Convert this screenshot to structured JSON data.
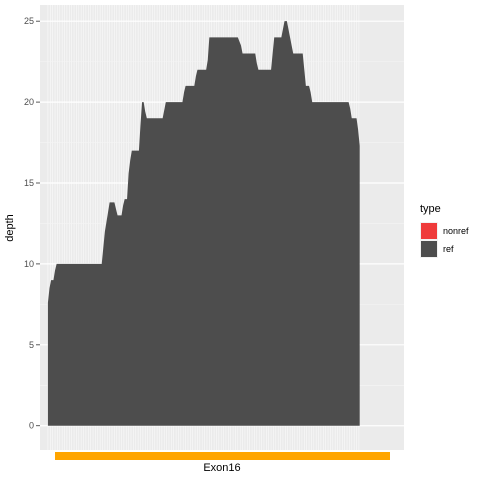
{
  "chart_data": {
    "type": "area",
    "ylabel": "depth",
    "ylim": [
      -1.5,
      26
    ],
    "yticks": [
      0,
      5,
      10,
      15,
      20,
      25
    ],
    "xlim": [
      -10,
      450
    ],
    "grid": true,
    "series": [
      {
        "name": "ref",
        "color": "#4d4d4d",
        "points": [
          [
            0,
            7.6
          ],
          [
            2,
            8.5
          ],
          [
            4,
            9
          ],
          [
            7,
            9
          ],
          [
            9,
            9.6
          ],
          [
            11,
            10
          ],
          [
            20,
            10
          ],
          [
            30,
            10
          ],
          [
            40,
            10
          ],
          [
            50,
            10
          ],
          [
            60,
            10
          ],
          [
            68,
            10
          ],
          [
            70,
            11
          ],
          [
            72,
            12
          ],
          [
            74,
            12.6
          ],
          [
            76,
            13.2
          ],
          [
            78,
            13.8
          ],
          [
            84,
            13.8
          ],
          [
            86,
            13.4
          ],
          [
            88,
            13
          ],
          [
            93,
            13
          ],
          [
            95,
            13.6
          ],
          [
            97,
            14
          ],
          [
            100,
            14
          ],
          [
            102,
            15.6
          ],
          [
            104,
            16.4
          ],
          [
            106,
            17
          ],
          [
            115,
            17
          ],
          [
            117,
            18.6
          ],
          [
            119,
            20
          ],
          [
            121,
            20
          ],
          [
            123,
            19.4
          ],
          [
            125,
            19
          ],
          [
            145,
            19
          ],
          [
            147,
            19.5
          ],
          [
            149,
            20
          ],
          [
            170,
            20
          ],
          [
            172,
            20.6
          ],
          [
            174,
            21
          ],
          [
            185,
            21
          ],
          [
            187,
            21.6
          ],
          [
            189,
            22
          ],
          [
            200,
            22
          ],
          [
            202,
            22.6
          ],
          [
            204,
            24
          ],
          [
            240,
            24
          ],
          [
            244,
            23.5
          ],
          [
            246,
            23
          ],
          [
            262,
            23
          ],
          [
            264,
            22.4
          ],
          [
            266,
            22
          ],
          [
            282,
            22
          ],
          [
            284,
            23
          ],
          [
            286,
            24
          ],
          [
            295,
            24
          ],
          [
            297,
            24.5
          ],
          [
            299,
            25
          ],
          [
            302,
            25
          ],
          [
            304,
            24.5
          ],
          [
            306,
            24
          ],
          [
            308,
            23.5
          ],
          [
            310,
            23
          ],
          [
            322,
            23
          ],
          [
            324,
            22
          ],
          [
            326,
            21
          ],
          [
            330,
            21
          ],
          [
            332,
            20.6
          ],
          [
            334,
            20
          ],
          [
            380,
            20
          ],
          [
            382,
            19.6
          ],
          [
            384,
            19
          ],
          [
            390,
            19
          ],
          [
            392,
            18.3
          ],
          [
            394,
            17.3
          ]
        ]
      },
      {
        "name": "nonref",
        "color": "#ef3b3b",
        "points": []
      }
    ],
    "legend": {
      "title": "type",
      "position": "right",
      "entries": [
        {
          "label": "nonref",
          "color": "#ef3b3b"
        },
        {
          "label": "ref",
          "color": "#4d4d4d"
        }
      ]
    },
    "track": {
      "label": "Exon16",
      "color": "#ffa500",
      "start": 0,
      "end": 394
    }
  }
}
